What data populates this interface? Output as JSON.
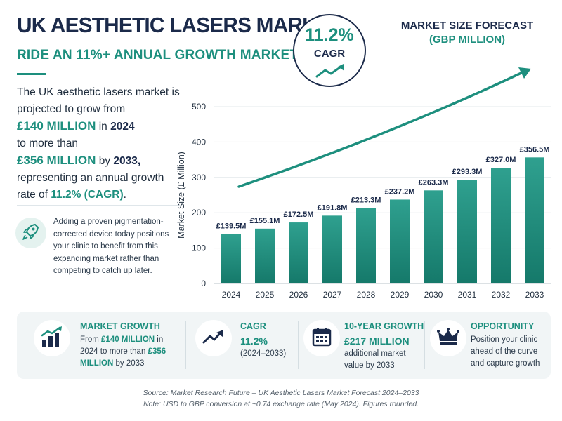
{
  "header": {
    "title": "UK AESTHETIC LASERS MARKET",
    "subtitle": "RIDE AN 11%+ ANNUAL GROWTH MARKET"
  },
  "intro": {
    "line1": "The UK aesthetic lasers market is projected to grow from",
    "from_value": "£140 MILLION",
    "in_word": "in",
    "from_year": "2024",
    "to_more": "to more than",
    "to_value": "£356 MILLION",
    "by_word": "by",
    "to_year": "2033,",
    "line_end": "representing an annual growth rate of",
    "rate": "11.2% (CAGR)",
    "period": "."
  },
  "tip": {
    "icon": "rocket-icon",
    "text": "Adding a proven pigmentation-corrected device today positions your clinic to benefit from this expanding market rather than competing to catch up later."
  },
  "cagr_badge": {
    "value": "11.2%",
    "label": "CAGR",
    "icon": "trend-arrow-icon"
  },
  "forecast": {
    "title": "MARKET SIZE FORECAST",
    "subtitle": "(GBP MILLION)"
  },
  "colors": {
    "teal": "#1d8f7e",
    "navy": "#1b2a4a",
    "bar_top": "#2fa08f",
    "bar_bottom": "#15796a"
  },
  "chart_data": {
    "type": "bar",
    "categories": [
      "2024",
      "2025",
      "2026",
      "2027",
      "2028",
      "2029",
      "2030",
      "2031",
      "2032",
      "2033"
    ],
    "values": [
      139.5,
      155.1,
      172.5,
      191.8,
      213.3,
      237.2,
      263.3,
      293.3,
      327.0,
      356.5
    ],
    "value_labels": [
      "£139.5M",
      "£155.1M",
      "£172.5M",
      "£191.8M",
      "£213.3M",
      "£237.2M",
      "£263.3M",
      "£293.3M",
      "£327.0M",
      "£356.5M"
    ],
    "ylabel": "Market Size (£ Million)",
    "ylim": [
      0,
      500
    ],
    "yticks": [
      0,
      100,
      200,
      300,
      400,
      500
    ],
    "grid": true,
    "trend_arrow": true
  },
  "cards": [
    {
      "icon": "bar-growth-icon",
      "title": "MARKET GROWTH",
      "t1": "From ",
      "h1": "£140 MILLION",
      "t2": " in 2024 to more than ",
      "h2": "£356 MILLION",
      "t3": " by 2033"
    },
    {
      "icon": "trend-arrow-icon",
      "title": "CAGR",
      "big": "11.2%",
      "body": "(2024–2033)"
    },
    {
      "icon": "calendar-icon",
      "title": "10-YEAR GROWTH",
      "big": "£217 MILLION",
      "body": "additional market value by 2033"
    },
    {
      "icon": "crown-icon",
      "title": "OPPORTUNITY",
      "body": "Position your clinic ahead of the curve and capture growth"
    }
  ],
  "footer": {
    "source": "Source: Market Research Future – UK Aesthetic Lasers Market Forecast 2024–2033",
    "note": "Note: USD to GBP conversion at ~0.74 exchange rate (May 2024). Figures rounded."
  }
}
